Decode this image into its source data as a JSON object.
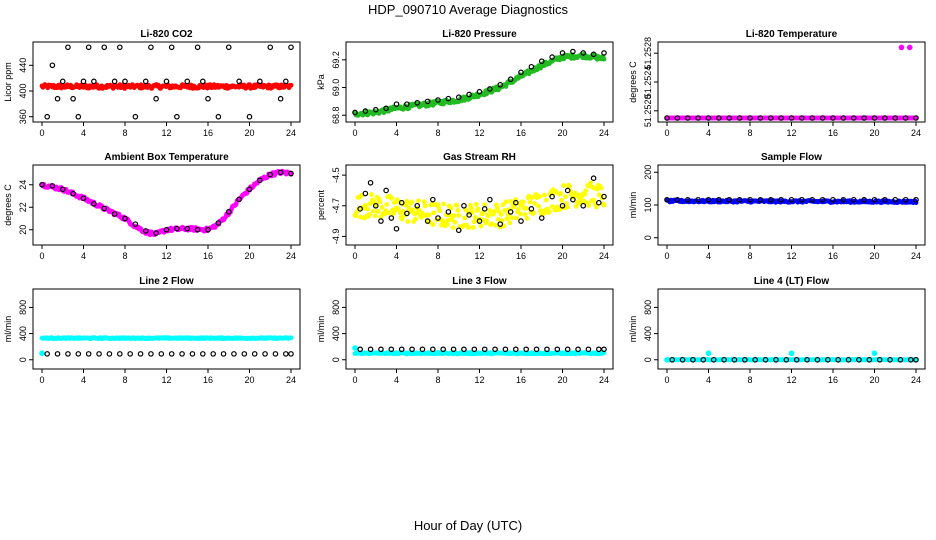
{
  "title": "HDP_090710  Average Diagnostics",
  "footer_xlabel": "Hour of Day (UTC)",
  "colors": {
    "red": "#ff0000",
    "green": "#22bb22",
    "magenta": "#ff00ff",
    "yellow": "#ffff00",
    "blue": "#0000ff",
    "cyan": "#00ffff",
    "black": "#000000"
  },
  "chart_data": [
    {
      "type": "scatter",
      "title": "Li-820 CO2",
      "xlabel": "",
      "ylabel": "Licor ppm",
      "xlim": [
        0,
        24
      ],
      "ylim": [
        358,
        470
      ],
      "xticks": [
        "0",
        "4",
        "8",
        "12",
        "16",
        "20",
        "24"
      ],
      "yticks": [
        "360",
        "400",
        "440"
      ],
      "series": [
        {
          "color": "red",
          "style": "dense",
          "x": [
            0.2,
            24
          ],
          "y": [
            407,
            407
          ],
          "jitter": 3
        },
        {
          "color": "black",
          "style": "open",
          "x": [
            0.5,
            1,
            1.5,
            2,
            2.5,
            3,
            3.5,
            4,
            4.5,
            5,
            6,
            7,
            7.5,
            8,
            9,
            10,
            10.5,
            11,
            12,
            12.5,
            13,
            14,
            15,
            15.5,
            16,
            17,
            18,
            19,
            20,
            21,
            22,
            23,
            23.5,
            24
          ],
          "y": [
            360,
            440,
            388,
            415,
            468,
            388,
            360,
            415,
            468,
            415,
            468,
            415,
            468,
            415,
            360,
            415,
            468,
            388,
            415,
            468,
            360,
            415,
            468,
            415,
            388,
            360,
            468,
            415,
            360,
            415,
            468,
            388,
            415,
            468
          ]
        }
      ]
    },
    {
      "type": "scatter",
      "title": "Li-820 Pressure",
      "xlabel": "",
      "ylabel": "kPa",
      "xlim": [
        0,
        24
      ],
      "ylim": [
        68.78,
        69.3
      ],
      "xticks": [
        "0",
        "4",
        "8",
        "12",
        "16",
        "20",
        "24"
      ],
      "yticks": [
        "68.8",
        "69.0",
        "69.2"
      ],
      "series": [
        {
          "color": "green",
          "style": "dense",
          "x": [
            0,
            2,
            4,
            6,
            8,
            10,
            12,
            14,
            16,
            18,
            20,
            22,
            24
          ],
          "y": [
            68.81,
            68.82,
            68.85,
            68.87,
            68.89,
            68.91,
            68.95,
            69.0,
            69.08,
            69.16,
            69.22,
            69.23,
            69.21
          ],
          "jitter": 0.015
        },
        {
          "color": "black",
          "style": "open",
          "x": [
            0,
            1,
            2,
            3,
            4,
            5,
            6,
            7,
            8,
            9,
            10,
            11,
            12,
            13,
            14,
            15,
            16,
            17,
            18,
            19,
            20,
            21,
            22,
            23,
            24
          ],
          "y": [
            68.82,
            68.83,
            68.84,
            68.85,
            68.88,
            68.88,
            68.89,
            68.9,
            68.91,
            68.92,
            68.93,
            68.95,
            68.97,
            68.99,
            69.02,
            69.06,
            69.11,
            69.15,
            69.19,
            69.22,
            69.25,
            69.26,
            69.25,
            69.24,
            69.25
          ]
        }
      ]
    },
    {
      "type": "scatter",
      "title": "Li-820 Temperature",
      "xlabel": "",
      "ylabel": "degrees C",
      "xlim": [
        0,
        24
      ],
      "ylim": [
        51.2519,
        51.2529
      ],
      "xticks": [
        "0",
        "4",
        "8",
        "12",
        "16",
        "20",
        "24"
      ],
      "yticks": [
        "51.2520",
        "51.2524",
        "51.2528"
      ],
      "series": [
        {
          "color": "magenta",
          "style": "dense",
          "x": [
            0,
            24
          ],
          "y": [
            51.2519,
            51.2519
          ],
          "jitter": 0
        },
        {
          "color": "black",
          "style": "open",
          "x": [
            0,
            1,
            2,
            3,
            4,
            5,
            6,
            7,
            8,
            9,
            10,
            11,
            12,
            13,
            14,
            15,
            16,
            17,
            18,
            19,
            20,
            21,
            22,
            23,
            24
          ],
          "y": [
            51.2519,
            51.2519,
            51.2519,
            51.2519,
            51.2519,
            51.2519,
            51.2519,
            51.2519,
            51.2519,
            51.2519,
            51.2519,
            51.2519,
            51.2519,
            51.2519,
            51.2519,
            51.2519,
            51.2519,
            51.2519,
            51.2519,
            51.2519,
            51.2519,
            51.2519,
            51.2519,
            51.2519,
            51.2519
          ]
        },
        {
          "color": "magenta",
          "style": "filled",
          "x": [
            22.6,
            23.4
          ],
          "y": [
            51.25288,
            51.25288
          ]
        }
      ]
    },
    {
      "type": "scatter",
      "title": "Ambient Box Temperature",
      "xlabel": "",
      "ylabel": "degrees C",
      "xlim": [
        0,
        24
      ],
      "ylim": [
        19,
        25.4
      ],
      "xticks": [
        "0",
        "4",
        "8",
        "12",
        "16",
        "20",
        "24"
      ],
      "yticks": [
        "20",
        "22",
        "24"
      ],
      "series": [
        {
          "color": "magenta",
          "style": "dense",
          "x": [
            0,
            2,
            4,
            6,
            8,
            9,
            10,
            11,
            12,
            14,
            16,
            17,
            18,
            19,
            20,
            21,
            22,
            23,
            24
          ],
          "y": [
            24.0,
            23.6,
            22.8,
            21.9,
            21.0,
            20.3,
            19.8,
            19.6,
            20.0,
            20.1,
            20.0,
            20.5,
            21.5,
            22.7,
            23.6,
            24.4,
            24.9,
            25.1,
            25.0
          ],
          "jitter": 0.15
        },
        {
          "color": "black",
          "style": "open",
          "x": [
            0,
            1,
            2,
            3,
            4,
            5,
            6,
            7,
            8,
            9,
            10,
            11,
            12,
            13,
            14,
            15,
            16,
            17,
            18,
            19,
            20,
            21,
            22,
            23,
            24
          ],
          "y": [
            24.0,
            23.9,
            23.6,
            23.2,
            22.8,
            22.3,
            21.9,
            21.4,
            21.0,
            20.5,
            19.9,
            19.7,
            20.0,
            20.1,
            20.1,
            20.0,
            20.0,
            20.6,
            21.6,
            22.7,
            23.6,
            24.4,
            24.9,
            25.1,
            25.0
          ]
        }
      ]
    },
    {
      "type": "scatter",
      "title": "Gas Stream RH",
      "xlabel": "",
      "ylabel": "percent",
      "xlim": [
        0,
        24
      ],
      "ylim": [
        -4.93,
        -4.46
      ],
      "xticks": [
        "0",
        "4",
        "8",
        "12",
        "16",
        "20",
        "24"
      ],
      "yticks": [
        "-4.9",
        "-4.7",
        "-4.5"
      ],
      "series": [
        {
          "color": "yellow",
          "style": "dense",
          "x": [
            0,
            2,
            4,
            6,
            8,
            10,
            12,
            14,
            16,
            18,
            20,
            22,
            24
          ],
          "y": [
            -4.7,
            -4.7,
            -4.72,
            -4.74,
            -4.76,
            -4.77,
            -4.76,
            -4.76,
            -4.72,
            -4.68,
            -4.64,
            -4.62,
            -4.64
          ],
          "jitter": 0.08
        },
        {
          "color": "black",
          "style": "open",
          "x": [
            0.5,
            1,
            1.5,
            2,
            2.5,
            3,
            3.5,
            4,
            4.5,
            5,
            6,
            7,
            7.5,
            8,
            9,
            10,
            10.5,
            11,
            12,
            12.5,
            13,
            14,
            15,
            15.5,
            16,
            17,
            18,
            19,
            20,
            20.5,
            21,
            22,
            23,
            23.5,
            24
          ],
          "y": [
            -4.72,
            -4.62,
            -4.55,
            -4.7,
            -4.8,
            -4.6,
            -4.78,
            -4.85,
            -4.68,
            -4.75,
            -4.7,
            -4.8,
            -4.66,
            -4.78,
            -4.74,
            -4.86,
            -4.7,
            -4.76,
            -4.8,
            -4.72,
            -4.66,
            -4.82,
            -4.74,
            -4.68,
            -4.8,
            -4.72,
            -4.78,
            -4.64,
            -4.7,
            -4.6,
            -4.66,
            -4.7,
            -4.52,
            -4.68,
            -4.64
          ]
        }
      ]
    },
    {
      "type": "scatter",
      "title": "Sample Flow",
      "xlabel": "",
      "ylabel": "ml/min",
      "xlim": [
        0,
        24
      ],
      "ylim": [
        -10,
        210
      ],
      "xticks": [
        "0",
        "4",
        "8",
        "12",
        "16",
        "20",
        "24"
      ],
      "yticks": [
        "0",
        "100",
        "200"
      ],
      "series": [
        {
          "color": "blue",
          "style": "dense",
          "x": [
            0,
            24
          ],
          "y": [
            112,
            110
          ],
          "jitter": 3
        },
        {
          "color": "black",
          "style": "open",
          "x": [
            0,
            1,
            2,
            3,
            4,
            5,
            6,
            7,
            8,
            9,
            10,
            11,
            12,
            13,
            14,
            15,
            16,
            17,
            18,
            19,
            20,
            21,
            22,
            23,
            24
          ],
          "y": [
            116,
            116,
            116,
            116,
            116,
            116,
            116,
            116,
            116,
            116,
            116,
            116,
            116,
            116,
            116,
            116,
            116,
            116,
            116,
            116,
            116,
            116,
            116,
            116,
            116
          ]
        }
      ]
    },
    {
      "type": "scatter",
      "title": "Line 2 Flow",
      "xlabel": "",
      "ylabel": "ml/min",
      "xlim": [
        0,
        24
      ],
      "ylim": [
        -80,
        1020
      ],
      "xticks": [
        "0",
        "4",
        "8",
        "12",
        "16",
        "20",
        "24"
      ],
      "yticks": [
        "0",
        "400",
        "800"
      ],
      "series": [
        {
          "color": "cyan",
          "style": "dense",
          "x": [
            0,
            24
          ],
          "y": [
            330,
            330
          ],
          "jitter": 8
        },
        {
          "color": "cyan",
          "style": "filled",
          "x": [
            0
          ],
          "y": [
            100
          ]
        },
        {
          "color": "black",
          "style": "open",
          "x": [
            0.5,
            1.5,
            2.5,
            3.5,
            4.5,
            5.5,
            6.5,
            7.5,
            8.5,
            9.5,
            10.5,
            11.5,
            12.5,
            13.5,
            14.5,
            15.5,
            16.5,
            17.5,
            18.5,
            19.5,
            20.5,
            21.5,
            22.5,
            23.5,
            24
          ],
          "y": [
            90,
            90,
            90,
            90,
            90,
            90,
            90,
            90,
            90,
            90,
            90,
            90,
            90,
            90,
            90,
            90,
            90,
            90,
            90,
            90,
            90,
            90,
            90,
            90,
            90
          ]
        }
      ]
    },
    {
      "type": "scatter",
      "title": "Line 3 Flow",
      "xlabel": "",
      "ylabel": "ml/min",
      "xlim": [
        0,
        24
      ],
      "ylim": [
        -80,
        1020
      ],
      "xticks": [
        "0",
        "4",
        "8",
        "12",
        "16",
        "20",
        "24"
      ],
      "yticks": [
        "0",
        "400",
        "800"
      ],
      "series": [
        {
          "color": "cyan",
          "style": "dense",
          "x": [
            0,
            24
          ],
          "y": [
            100,
            100
          ],
          "jitter": 10
        },
        {
          "color": "cyan",
          "style": "filled",
          "x": [
            0
          ],
          "y": [
            180
          ]
        },
        {
          "color": "black",
          "style": "open",
          "x": [
            0.5,
            1.5,
            2.5,
            3.5,
            4.5,
            5.5,
            6.5,
            7.5,
            8.5,
            9.5,
            10.5,
            11.5,
            12.5,
            13.5,
            14.5,
            15.5,
            16.5,
            17.5,
            18.5,
            19.5,
            20.5,
            21.5,
            22.5,
            23.5,
            24
          ],
          "y": [
            160,
            160,
            160,
            160,
            160,
            160,
            160,
            160,
            160,
            160,
            160,
            160,
            160,
            160,
            160,
            160,
            160,
            160,
            160,
            160,
            160,
            160,
            160,
            160,
            160
          ]
        }
      ]
    },
    {
      "type": "scatter",
      "title": "Line 4 (LT) Flow",
      "xlabel": "",
      "ylabel": "ml/min",
      "xlim": [
        0,
        24
      ],
      "ylim": [
        -80,
        1020
      ],
      "xticks": [
        "0",
        "4",
        "8",
        "12",
        "16",
        "20",
        "24"
      ],
      "yticks": [
        "0",
        "400",
        "800"
      ],
      "series": [
        {
          "color": "cyan",
          "style": "dense",
          "x": [
            0,
            24
          ],
          "y": [
            0,
            0
          ],
          "jitter": 3
        },
        {
          "color": "cyan",
          "style": "filled",
          "x": [
            0,
            4,
            12,
            20
          ],
          "y": [
            0,
            100,
            100,
            100
          ]
        },
        {
          "color": "black",
          "style": "open",
          "x": [
            0.5,
            1.5,
            2.5,
            3.5,
            4.5,
            5.5,
            6.5,
            7.5,
            8.5,
            9.5,
            10.5,
            11.5,
            12.5,
            13.5,
            14.5,
            15.5,
            16.5,
            17.5,
            18.5,
            19.5,
            20.5,
            21.5,
            22.5,
            23.5,
            24
          ],
          "y": [
            0,
            0,
            0,
            0,
            0,
            0,
            0,
            0,
            0,
            0,
            0,
            0,
            0,
            0,
            0,
            0,
            0,
            0,
            0,
            0,
            0,
            0,
            0,
            0,
            0
          ]
        }
      ]
    }
  ]
}
